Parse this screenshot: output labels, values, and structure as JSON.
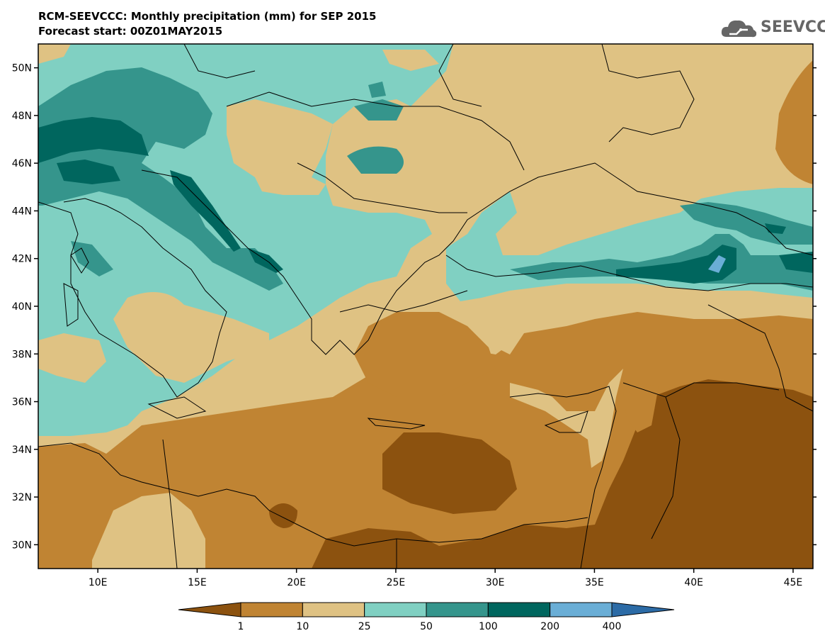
{
  "header": {
    "title": "RCM-SEEVCCC: Monthly precipitation (mm) for SEP 2015",
    "subtitle": "Forecast start: 00Z01MAY2015",
    "logo_text": "SEEVCCC"
  },
  "map": {
    "lon_range": [
      7,
      46
    ],
    "lat_range": [
      29,
      51
    ],
    "lat_ticks": [
      "30N",
      "32N",
      "34N",
      "36N",
      "38N",
      "40N",
      "42N",
      "44N",
      "46N",
      "48N",
      "50N"
    ],
    "lat_values": [
      30,
      32,
      34,
      36,
      38,
      40,
      42,
      44,
      46,
      48,
      50
    ],
    "lon_ticks": [
      "10E",
      "15E",
      "20E",
      "25E",
      "30E",
      "35E",
      "40E",
      "45E"
    ],
    "lon_values": [
      10,
      15,
      20,
      25,
      30,
      35,
      40,
      45
    ]
  },
  "legend": {
    "labels": [
      "1",
      "10",
      "25",
      "50",
      "100",
      "200",
      "400"
    ],
    "colors": [
      "#8c520f",
      "#c08433",
      "#dfc283",
      "#80d0c2",
      "#35958c",
      "#00665e",
      "#6aaed6",
      "#2c6ba6"
    ]
  }
}
